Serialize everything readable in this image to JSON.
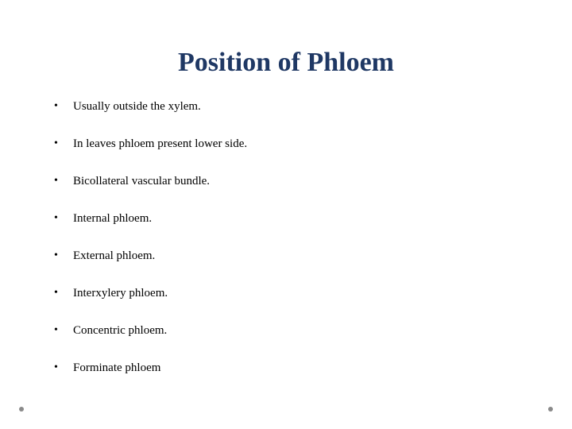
{
  "title": {
    "text": "Position of Phloem",
    "color": "#1f3864",
    "fontsize": 34
  },
  "body": {
    "color": "#000000",
    "fontsize": 15,
    "font_family": "Georgia, 'Times New Roman', serif"
  },
  "bullets": [
    "Usually outside the xylem.",
    "In leaves phloem present lower side.",
    "Bicollateral vascular bundle.",
    "Internal phloem.",
    "External phloem.",
    "Interxylery phloem.",
    "Concentric phloem.",
    "Forminate phloem"
  ],
  "corner_dot_color": "#8a8a8a",
  "background_color": "#ffffff"
}
